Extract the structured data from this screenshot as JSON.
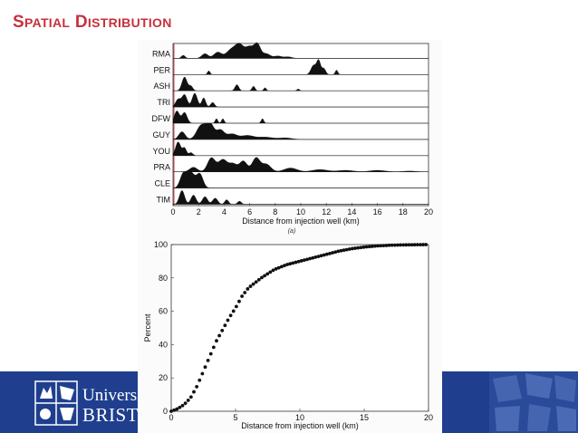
{
  "slide": {
    "title_first": "S",
    "title_first_rest": "PATIAL",
    "title_second": "D",
    "title_second_rest": "ISTRIBUTION"
  },
  "branding": {
    "logo_line1": "Universit",
    "logo_line2": "BRIST",
    "footer_color": "#1f3f8e",
    "title_color": "#c8303b"
  },
  "chart_data": [
    {
      "type": "area",
      "title": "",
      "caption": "(a)",
      "xlabel": "Distance from injection well (km)",
      "ylabel": "",
      "xlim": [
        0,
        20
      ],
      "xticks": [
        0,
        2,
        4,
        6,
        8,
        10,
        12,
        14,
        16,
        18,
        20
      ],
      "rows": [
        {
          "name": "RMA",
          "peaks": [
            [
              0.8,
              0.2,
              0.15
            ],
            [
              2.5,
              0.3,
              0.25
            ],
            [
              3.5,
              0.4,
              0.3
            ],
            [
              4.5,
              0.5,
              0.35
            ],
            [
              5.2,
              0.9,
              0.35
            ],
            [
              6.0,
              0.7,
              0.3
            ],
            [
              6.6,
              0.9,
              0.25
            ],
            [
              7.3,
              0.3,
              0.3
            ],
            [
              8.2,
              0.15,
              0.3
            ],
            [
              9.0,
              0.1,
              0.3
            ]
          ]
        },
        {
          "name": "PER",
          "peaks": [
            [
              2.8,
              0.25,
              0.1
            ],
            [
              11.0,
              0.6,
              0.2
            ],
            [
              11.4,
              0.9,
              0.15
            ],
            [
              11.8,
              0.4,
              0.15
            ],
            [
              12.8,
              0.3,
              0.1
            ]
          ]
        },
        {
          "name": "ASH",
          "peaks": [
            [
              0.9,
              0.9,
              0.2
            ],
            [
              1.4,
              0.3,
              0.15
            ],
            [
              5.0,
              0.4,
              0.15
            ],
            [
              6.3,
              0.3,
              0.12
            ],
            [
              7.2,
              0.2,
              0.1
            ],
            [
              9.8,
              0.12,
              0.1
            ]
          ]
        },
        {
          "name": "TRI",
          "peaks": [
            [
              0.4,
              0.5,
              0.2
            ],
            [
              0.9,
              0.8,
              0.2
            ],
            [
              1.7,
              0.9,
              0.2
            ],
            [
              2.4,
              0.6,
              0.15
            ],
            [
              3.1,
              0.3,
              0.15
            ]
          ]
        },
        {
          "name": "DFW",
          "peaks": [
            [
              0.3,
              0.8,
              0.2
            ],
            [
              0.9,
              0.7,
              0.2
            ],
            [
              3.4,
              0.3,
              0.1
            ],
            [
              3.9,
              0.3,
              0.1
            ],
            [
              7.0,
              0.3,
              0.1
            ]
          ]
        },
        {
          "name": "GUY",
          "peaks": [
            [
              0.7,
              0.5,
              0.25
            ],
            [
              2.2,
              0.9,
              0.35
            ],
            [
              2.9,
              1.0,
              0.3
            ],
            [
              3.7,
              0.6,
              0.3
            ],
            [
              4.6,
              0.35,
              0.4
            ],
            [
              5.8,
              0.25,
              0.5
            ],
            [
              7.2,
              0.15,
              0.6
            ],
            [
              8.8,
              0.1,
              0.5
            ]
          ]
        },
        {
          "name": "YOU",
          "peaks": [
            [
              0.4,
              0.9,
              0.2
            ],
            [
              0.9,
              0.5,
              0.15
            ],
            [
              1.4,
              0.2,
              0.15
            ]
          ]
        },
        {
          "name": "PRA",
          "peaks": [
            [
              1.6,
              0.3,
              0.3
            ],
            [
              3.0,
              0.9,
              0.3
            ],
            [
              3.9,
              0.8,
              0.35
            ],
            [
              4.7,
              0.5,
              0.3
            ],
            [
              5.5,
              0.7,
              0.3
            ],
            [
              6.5,
              0.9,
              0.3
            ],
            [
              7.3,
              0.5,
              0.35
            ],
            [
              9.2,
              0.25,
              0.5
            ],
            [
              11.5,
              0.15,
              0.6
            ],
            [
              13.5,
              0.1,
              0.6
            ],
            [
              16.0,
              0.1,
              0.6
            ],
            [
              18.5,
              0.05,
              0.5
            ]
          ]
        },
        {
          "name": "CLE",
          "peaks": [
            [
              0.8,
              0.9,
              0.25
            ],
            [
              1.4,
              1.0,
              0.3
            ],
            [
              2.1,
              0.9,
              0.25
            ]
          ]
        },
        {
          "name": "TIM",
          "peaks": [
            [
              0.7,
              0.9,
              0.2
            ],
            [
              1.6,
              0.6,
              0.2
            ],
            [
              2.5,
              0.5,
              0.2
            ],
            [
              3.3,
              0.4,
              0.2
            ],
            [
              4.2,
              0.3,
              0.15
            ],
            [
              5.2,
              0.2,
              0.15
            ]
          ]
        }
      ]
    },
    {
      "type": "scatter",
      "title": "",
      "xlabel": "Distance from injection well (km)",
      "ylabel": "Percent",
      "xlim": [
        0,
        20
      ],
      "ylim": [
        0,
        100
      ],
      "xticks": [
        0,
        5,
        10,
        15,
        20
      ],
      "yticks": [
        0,
        20,
        40,
        60,
        80,
        100
      ],
      "curve": [
        [
          0,
          0
        ],
        [
          0.5,
          1.5
        ],
        [
          1,
          4
        ],
        [
          1.5,
          8
        ],
        [
          2,
          15
        ],
        [
          2.5,
          24
        ],
        [
          3,
          33
        ],
        [
          3.5,
          42
        ],
        [
          4,
          49
        ],
        [
          4.5,
          56
        ],
        [
          5,
          62
        ],
        [
          5.5,
          69
        ],
        [
          6,
          74
        ],
        [
          7,
          80
        ],
        [
          8,
          85
        ],
        [
          9,
          88
        ],
        [
          10,
          90
        ],
        [
          11,
          92
        ],
        [
          12,
          94
        ],
        [
          13,
          96
        ],
        [
          14,
          97.5
        ],
        [
          15,
          98.5
        ],
        [
          16,
          99.2
        ],
        [
          17,
          99.6
        ],
        [
          18,
          99.8
        ],
        [
          20,
          100
        ]
      ]
    }
  ]
}
